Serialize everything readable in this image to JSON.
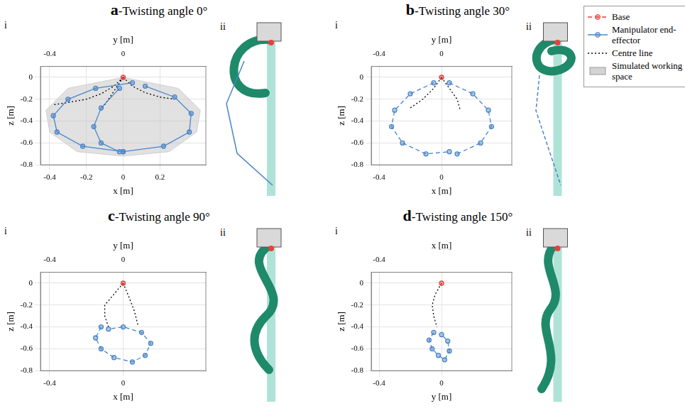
{
  "chart_data": [
    {
      "type": "scatter",
      "title": "a-Twisting angle 0°",
      "subtitle": "i",
      "image_label": "ii",
      "xlabel": "x [m]",
      "ylabel": "z [m]",
      "x2label": "y [m]",
      "xlim": [
        -0.45,
        0.45
      ],
      "ylim": [
        -0.8,
        0.1
      ],
      "x2lim": [
        -0.45,
        0.45
      ],
      "xticks": [
        -0.4,
        -0.2,
        0,
        0.2
      ],
      "yticks": [
        -0.8,
        -0.6,
        -0.4,
        -0.2,
        0
      ],
      "x2ticks": [
        -0.4,
        0
      ],
      "grid": true,
      "legend": "upper right",
      "series": [
        {
          "name": "Simulated working space",
          "type": "area",
          "color": "#c8c8c8",
          "line_style": "solid",
          "marker": "none",
          "x": [
            0,
            -0.3,
            -0.42,
            -0.4,
            -0.25,
            0,
            0.25,
            0.4,
            0.42,
            0.3,
            0
          ],
          "values": [
            0,
            -0.1,
            -0.3,
            -0.5,
            -0.68,
            -0.72,
            -0.68,
            -0.5,
            -0.3,
            -0.1,
            0
          ]
        },
        {
          "name": "Base",
          "color": "#e8413c",
          "line_style": "dashed",
          "marker": "circle",
          "x": [
            0
          ],
          "values": [
            0
          ]
        },
        {
          "name": "Manipulator end-effector",
          "color": "#4a86c8",
          "line_style": "solid",
          "marker": "circle",
          "x": [
            0.05,
            -0.15,
            -0.3,
            -0.38,
            -0.36,
            -0.22,
            0,
            null,
            0.12,
            0.28,
            0.37,
            0.36,
            0.22,
            0,
            null,
            -0.02,
            -0.12,
            -0.16,
            -0.12,
            -0.02
          ],
          "values": [
            -0.05,
            -0.1,
            -0.2,
            -0.35,
            -0.5,
            -0.63,
            -0.68,
            null,
            -0.08,
            -0.18,
            -0.33,
            -0.5,
            -0.63,
            -0.68,
            null,
            -0.1,
            -0.28,
            -0.45,
            -0.6,
            -0.68
          ]
        },
        {
          "name": "Centre line",
          "color": "#000000",
          "line_style": "dotted",
          "marker": "none",
          "x": [
            0,
            -0.05,
            -0.12,
            -0.2,
            -0.3,
            -0.38,
            null,
            0,
            0.05,
            0.12,
            0.2,
            0.28,
            null,
            0,
            -0.04,
            -0.08,
            -0.12
          ],
          "values": [
            0,
            -0.08,
            -0.15,
            -0.2,
            -0.23,
            -0.25,
            null,
            0,
            -0.08,
            -0.14,
            -0.18,
            -0.2,
            null,
            0,
            -0.1,
            -0.2,
            -0.3
          ]
        }
      ]
    },
    {
      "type": "scatter",
      "title": "b-Twisting angle 30°",
      "subtitle": "i",
      "image_label": "ii",
      "xlabel": "x [m]",
      "ylabel": "z [m]",
      "x2label": "y [m]",
      "xlim": [
        -0.45,
        0.45
      ],
      "ylim": [
        -0.8,
        0.1
      ],
      "x2lim": [
        -0.45,
        0.45
      ],
      "xticks": [
        -0.4,
        0
      ],
      "yticks": [
        -0.8,
        -0.6,
        -0.4,
        -0.2,
        0
      ],
      "x2ticks": [
        -0.4,
        0
      ],
      "grid": true,
      "series": [
        {
          "name": "Base",
          "color": "#e8413c",
          "line_style": "dashed",
          "marker": "circle",
          "x": [
            0
          ],
          "values": [
            0
          ]
        },
        {
          "name": "Manipulator end-effector",
          "color": "#4a86c8",
          "line_style": "dashed",
          "marker": "circle",
          "x": [
            -0.05,
            -0.2,
            -0.3,
            -0.32,
            -0.25,
            -0.1,
            0.05,
            null,
            0.05,
            0.2,
            0.3,
            0.32,
            0.25,
            0.1
          ],
          "values": [
            -0.05,
            -0.15,
            -0.3,
            -0.45,
            -0.6,
            -0.7,
            -0.68,
            null,
            -0.05,
            -0.15,
            -0.3,
            -0.45,
            -0.6,
            -0.7
          ]
        },
        {
          "name": "Centre line",
          "color": "#000000",
          "line_style": "dotted",
          "marker": "none",
          "x": [
            0,
            -0.05,
            -0.12,
            -0.2,
            null,
            0,
            0.05,
            0.1,
            0.12
          ],
          "values": [
            0,
            -0.1,
            -0.2,
            -0.28,
            null,
            0,
            -0.1,
            -0.2,
            -0.3
          ]
        }
      ]
    },
    {
      "type": "scatter",
      "title": "c-Twisting angle 90°",
      "subtitle": "i",
      "image_label": "ii",
      "xlabel": "x [m]",
      "ylabel": "z [m]",
      "x2label": "y [m]",
      "xlim": [
        -0.45,
        0.45
      ],
      "ylim": [
        -0.8,
        0.1
      ],
      "x2lim": [
        -0.45,
        0.45
      ],
      "xticks": [
        -0.4,
        0
      ],
      "yticks": [
        -0.8,
        -0.6,
        -0.4,
        -0.2,
        0
      ],
      "x2ticks": [
        -0.4,
        0
      ],
      "grid": true,
      "series": [
        {
          "name": "Base",
          "color": "#e8413c",
          "line_style": "dashed",
          "marker": "circle",
          "x": [
            0
          ],
          "values": [
            0
          ]
        },
        {
          "name": "Manipulator end-effector",
          "color": "#4a86c8",
          "line_style": "dashed",
          "marker": "circle",
          "x": [
            -0.12,
            -0.15,
            -0.12,
            -0.05,
            0.05,
            0.12,
            0.15,
            0.1,
            0,
            -0.08
          ],
          "values": [
            -0.4,
            -0.5,
            -0.6,
            -0.68,
            -0.72,
            -0.66,
            -0.55,
            -0.45,
            -0.4,
            -0.42
          ]
        },
        {
          "name": "Centre line",
          "color": "#000000",
          "line_style": "dotted",
          "marker": "none",
          "x": [
            0,
            -0.05,
            -0.1,
            -0.1,
            -0.08,
            null,
            0,
            0.03,
            0.06,
            0.08
          ],
          "values": [
            0,
            -0.1,
            -0.2,
            -0.3,
            -0.4,
            null,
            0,
            -0.12,
            -0.25,
            -0.38
          ]
        }
      ]
    },
    {
      "type": "scatter",
      "title": "d-Twisting angle 150°",
      "subtitle": "i",
      "image_label": "ii",
      "xlabel": "y [m]",
      "ylabel": "z [m]",
      "x2label": "x [m]",
      "xlim": [
        -0.45,
        0.45
      ],
      "ylim": [
        -0.8,
        0.1
      ],
      "x2lim": [
        -0.45,
        0.45
      ],
      "xticks": [
        -0.4,
        0
      ],
      "yticks": [
        -0.8,
        -0.6,
        -0.4,
        -0.2,
        0
      ],
      "x2ticks": [
        -0.4
      ],
      "grid": true,
      "series": [
        {
          "name": "Base",
          "color": "#e8413c",
          "line_style": "dashed",
          "marker": "circle",
          "x": [
            0
          ],
          "values": [
            0
          ]
        },
        {
          "name": "Manipulator end-effector",
          "color": "#4a86c8",
          "line_style": "dashed",
          "marker": "circle",
          "x": [
            -0.05,
            -0.08,
            -0.06,
            -0.02,
            0.02,
            0.05,
            0.04,
            0
          ],
          "values": [
            -0.45,
            -0.52,
            -0.6,
            -0.66,
            -0.7,
            -0.62,
            -0.53,
            -0.47
          ]
        },
        {
          "name": "Centre line",
          "color": "#000000",
          "line_style": "dotted",
          "marker": "none",
          "x": [
            0,
            -0.04,
            -0.06,
            -0.05,
            -0.03
          ],
          "values": [
            0,
            -0.1,
            -0.2,
            -0.3,
            -0.4
          ]
        }
      ]
    }
  ]
}
